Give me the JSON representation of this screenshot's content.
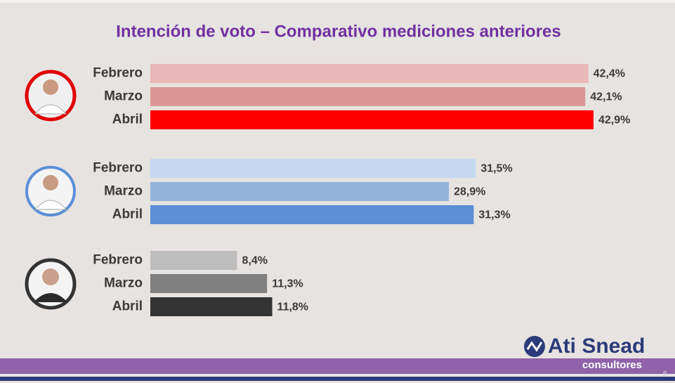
{
  "chart_data": {
    "type": "bar",
    "orientation": "horizontal",
    "title": "Intención de voto – Comparativo mediciones anteriores",
    "groups": [
      {
        "categories": [
          "Febrero",
          "Marzo",
          "Abril"
        ],
        "values": [
          42.4,
          42.1,
          42.9
        ],
        "value_labels": [
          "42,4%",
          "42,1%",
          "42,9%"
        ],
        "colors": [
          "#e8b7b7",
          "#dc9696",
          "#ff0000"
        ]
      },
      {
        "categories": [
          "Febrero",
          "Marzo",
          "Abril"
        ],
        "values": [
          31.5,
          28.9,
          31.3
        ],
        "value_labels": [
          "31,5%",
          "28,9%",
          "31,3%"
        ],
        "colors": [
          "#c6d8f0",
          "#94b3d9",
          "#5b8fd6"
        ]
      },
      {
        "categories": [
          "Febrero",
          "Marzo",
          "Abril"
        ],
        "values": [
          8.4,
          11.3,
          11.8
        ],
        "value_labels": [
          "8,4%",
          "11,3%",
          "11,8%"
        ],
        "colors": [
          "#bdbdbd",
          "#808080",
          "#333333"
        ]
      }
    ]
  },
  "footer": {
    "brand": "Ati Snead",
    "brand_sub": "consultores",
    "page": "6"
  }
}
